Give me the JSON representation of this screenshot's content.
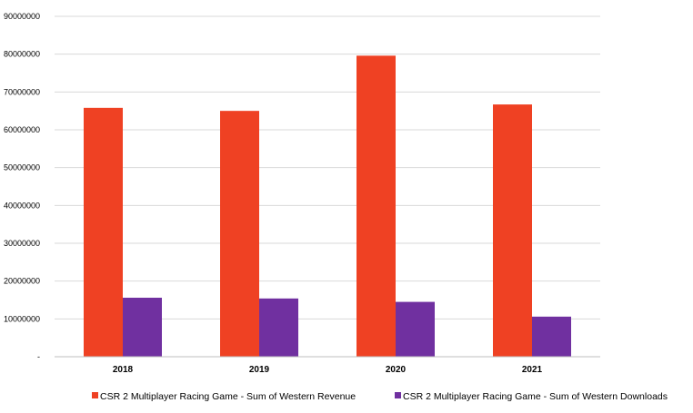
{
  "chart_data": {
    "type": "bar",
    "categories": [
      "2018",
      "2019",
      "2020",
      "2021"
    ],
    "series": [
      {
        "name": "CSR 2 Multiplayer Racing Game - Sum of Western Revenue",
        "color": "#ef4123",
        "values": [
          65800000,
          65000000,
          79600000,
          66700000
        ]
      },
      {
        "name": "CSR 2 Multiplayer Racing Game - Sum of Western Downloads",
        "color": "#7030a0",
        "values": [
          15600000,
          15400000,
          14500000,
          10600000
        ]
      }
    ],
    "ylim": [
      0,
      90000000
    ],
    "yticks": [
      0,
      10000000,
      20000000,
      30000000,
      40000000,
      50000000,
      60000000,
      70000000,
      80000000,
      90000000
    ],
    "ytick_labels": [
      "-",
      "10000000",
      "20000000",
      "30000000",
      "40000000",
      "50000000",
      "60000000",
      "70000000",
      "80000000",
      "90000000"
    ],
    "grid": true,
    "legend_position": "bottom",
    "title": "",
    "xlabel": "",
    "ylabel": ""
  }
}
